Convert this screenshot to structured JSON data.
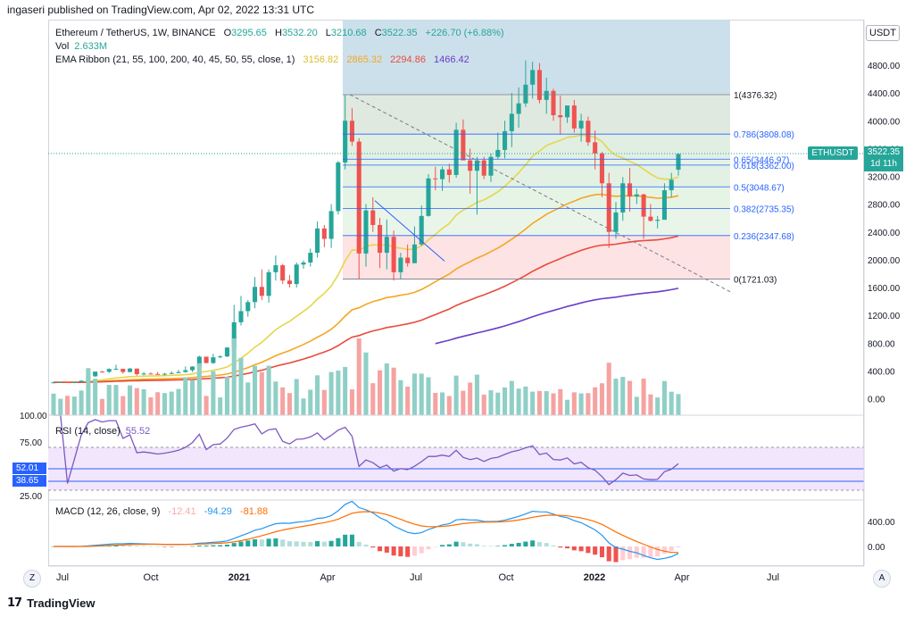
{
  "header": {
    "published": "ingaseri published on TradingView.com, Apr 02, 2022 13:31 UTC"
  },
  "legend": {
    "symbol": "Ethereum / TetherUS, 1W, BINANCE",
    "o_label": "O",
    "o_val": "3295.65",
    "h_label": "H",
    "h_val": "3532.20",
    "l_label": "L",
    "l_val": "3210.68",
    "c_label": "C",
    "c_val": "3522.35",
    "change": "+226.70 (+6.88%)",
    "vol_label": "Vol",
    "vol_val": "2.633M",
    "ema_label": "EMA Ribbon (21, 55, 100, 200, 40, 45, 50, 55, close, 1)",
    "ema_vals": [
      "3156.82",
      "2865.32",
      "2294.86",
      "1466.42"
    ],
    "ema_colors": [
      "#e6d64b",
      "#f5a623",
      "#e84b3c",
      "#6a3dc8"
    ]
  },
  "currency": "USDT",
  "price_tag": {
    "symbol": "ETHUSDT",
    "price": "3522.35",
    "countdown": "1d 11h"
  },
  "rsi": {
    "label": "RSI (14, close)",
    "value": "55.52",
    "ma_value": "52.01",
    "prev_value": "38.65",
    "ticks": [
      "100.00",
      "75.00",
      "25.00"
    ]
  },
  "macd": {
    "label": "MACD (12, 26, close, 9)",
    "hist": "-12.41",
    "macd": "-94.29",
    "signal": "-81.88",
    "ticks": [
      "400.00",
      "0.00"
    ]
  },
  "x_labels": [
    "Jul",
    "Oct",
    "2021",
    "Apr",
    "Jul",
    "Oct",
    "2022",
    "Apr",
    "Jul"
  ],
  "footer": {
    "brand": "TradingView",
    "logo": "17"
  },
  "controls": {
    "z": "Z",
    "a": "A"
  },
  "colors": {
    "up": "#26a69a",
    "down": "#ef5350",
    "fib_line": "#2962ff"
  },
  "chart_data": {
    "type": "candlestick",
    "title": "Ethereum / TetherUS, 1W, BINANCE",
    "y_ticks": [
      "400.00",
      "800.00",
      "1200.00",
      "1600.00",
      "2000.00",
      "2400.00",
      "2800.00",
      "3200.00",
      "3600.00",
      "4000.00",
      "4400.00",
      "4800.00"
    ],
    "ylim": [
      0,
      5200
    ],
    "candles_ohlc": [
      [
        227,
        244,
        221,
        235
      ],
      [
        235,
        243,
        229,
        239
      ],
      [
        239,
        245,
        225,
        232
      ],
      [
        232,
        240,
        222,
        238
      ],
      [
        238,
        262,
        232,
        259
      ],
      [
        259,
        335,
        256,
        322
      ],
      [
        322,
        387,
        316,
        390
      ],
      [
        390,
        400,
        377,
        386
      ],
      [
        386,
        436,
        370,
        428
      ],
      [
        428,
        488,
        415,
        430
      ],
      [
        430,
        395,
        360,
        384
      ],
      [
        384,
        442,
        378,
        434
      ],
      [
        434,
        395,
        332,
        353
      ],
      [
        353,
        385,
        337,
        361
      ],
      [
        361,
        379,
        353,
        356
      ],
      [
        356,
        385,
        345,
        350
      ],
      [
        350,
        372,
        335,
        358
      ],
      [
        358,
        394,
        352,
        369
      ],
      [
        369,
        414,
        363,
        383
      ],
      [
        383,
        464,
        375,
        410
      ],
      [
        410,
        468,
        382,
        462
      ],
      [
        462,
        618,
        459,
        605
      ],
      [
        605,
        560,
        510,
        513
      ],
      [
        513,
        645,
        501,
        595
      ],
      [
        595,
        625,
        583,
        608
      ],
      [
        608,
        741,
        598,
        736
      ],
      [
        736,
        1350,
        722,
        1100
      ],
      [
        1100,
        1480,
        1054,
        1260
      ],
      [
        1260,
        1420,
        1180,
        1390
      ],
      [
        1390,
        1750,
        1300,
        1609
      ],
      [
        1609,
        1860,
        1420,
        1480
      ],
      [
        1480,
        1860,
        1380,
        1820
      ],
      [
        1820,
        2060,
        1700,
        1920
      ],
      [
        1920,
        1940,
        1650,
        1700
      ],
      [
        1700,
        1780,
        1600,
        1650
      ],
      [
        1650,
        1960,
        1600,
        1930
      ],
      [
        1930,
        1990,
        1870,
        1960
      ],
      [
        1960,
        2160,
        1900,
        2100
      ],
      [
        2100,
        2550,
        2030,
        2450
      ],
      [
        2450,
        2500,
        2180,
        2300
      ],
      [
        2300,
        2800,
        2170,
        2700
      ],
      [
        2700,
        3420,
        2650,
        3400
      ],
      [
        3400,
        4370,
        3300,
        4000
      ],
      [
        4000,
        4180,
        3640,
        3700
      ],
      [
        3700,
        3750,
        1720,
        2090
      ],
      [
        2090,
        2800,
        1900,
        2710
      ],
      [
        2710,
        2900,
        2400,
        2500
      ],
      [
        2500,
        2600,
        1880,
        2100
      ],
      [
        2100,
        2580,
        1860,
        2330
      ],
      [
        2330,
        2420,
        1700,
        1820
      ],
      [
        1820,
        2100,
        1720,
        2030
      ],
      [
        2030,
        2220,
        1900,
        1950
      ],
      [
        1950,
        2480,
        1970,
        2220
      ],
      [
        2220,
        2780,
        2200,
        2630
      ],
      [
        2630,
        3230,
        2620,
        3170
      ],
      [
        3170,
        3340,
        3000,
        3160
      ],
      [
        3160,
        3340,
        2990,
        3300
      ],
      [
        3300,
        3380,
        3110,
        3220
      ],
      [
        3220,
        3970,
        3180,
        3870
      ],
      [
        3870,
        4020,
        3540,
        3430
      ],
      [
        3430,
        3600,
        2950,
        3280
      ],
      [
        3280,
        3480,
        2650,
        3430
      ],
      [
        3430,
        3480,
        3160,
        3210
      ],
      [
        3210,
        3530,
        3120,
        3480
      ],
      [
        3480,
        3830,
        3450,
        3580
      ],
      [
        3580,
        4000,
        3460,
        3850
      ],
      [
        3850,
        4400,
        3620,
        4100
      ],
      [
        4100,
        4480,
        3900,
        4250
      ],
      [
        4250,
        4870,
        4200,
        4520
      ],
      [
        4520,
        4850,
        4320,
        4730
      ],
      [
        4730,
        4830,
        4250,
        4300
      ],
      [
        4300,
        4620,
        4100,
        4430
      ],
      [
        4430,
        4460,
        4000,
        4080
      ],
      [
        4080,
        4360,
        3800,
        4050
      ],
      [
        4050,
        4180,
        3970,
        4220
      ],
      [
        4220,
        4300,
        3830,
        3890
      ],
      [
        3890,
        4100,
        3700,
        4000
      ],
      [
        4000,
        4060,
        3640,
        3690
      ],
      [
        3690,
        3860,
        3300,
        3530
      ],
      [
        3530,
        3550,
        2900,
        3100
      ],
      [
        3100,
        3250,
        2170,
        2400
      ],
      [
        2400,
        2830,
        2300,
        2680
      ],
      [
        2680,
        3190,
        2560,
        3100
      ],
      [
        3100,
        3320,
        2690,
        2910
      ],
      [
        2910,
        3020,
        2800,
        2940
      ],
      [
        2940,
        2950,
        2300,
        2620
      ],
      [
        2620,
        2800,
        2550,
        2560
      ],
      [
        2560,
        2630,
        2450,
        2575
      ],
      [
        2575,
        3100,
        2580,
        3000
      ],
      [
        3000,
        3250,
        2900,
        3150
      ],
      [
        3295.65,
        3532.2,
        3210.68,
        3522.35
      ]
    ],
    "fib_levels": [
      {
        "ratio": "1",
        "price": 4376.32
      },
      {
        "ratio": "0.786",
        "price": 3808.08
      },
      {
        "ratio": "0.65",
        "price": 3446.97
      },
      {
        "ratio": "0.618",
        "price": 3362.0
      },
      {
        "ratio": "0.5",
        "price": 3048.67
      },
      {
        "ratio": "0.382",
        "price": 2735.35
      },
      {
        "ratio": "0.236",
        "price": 2347.68
      },
      {
        "ratio": "0",
        "price": 1721.03
      }
    ]
  }
}
